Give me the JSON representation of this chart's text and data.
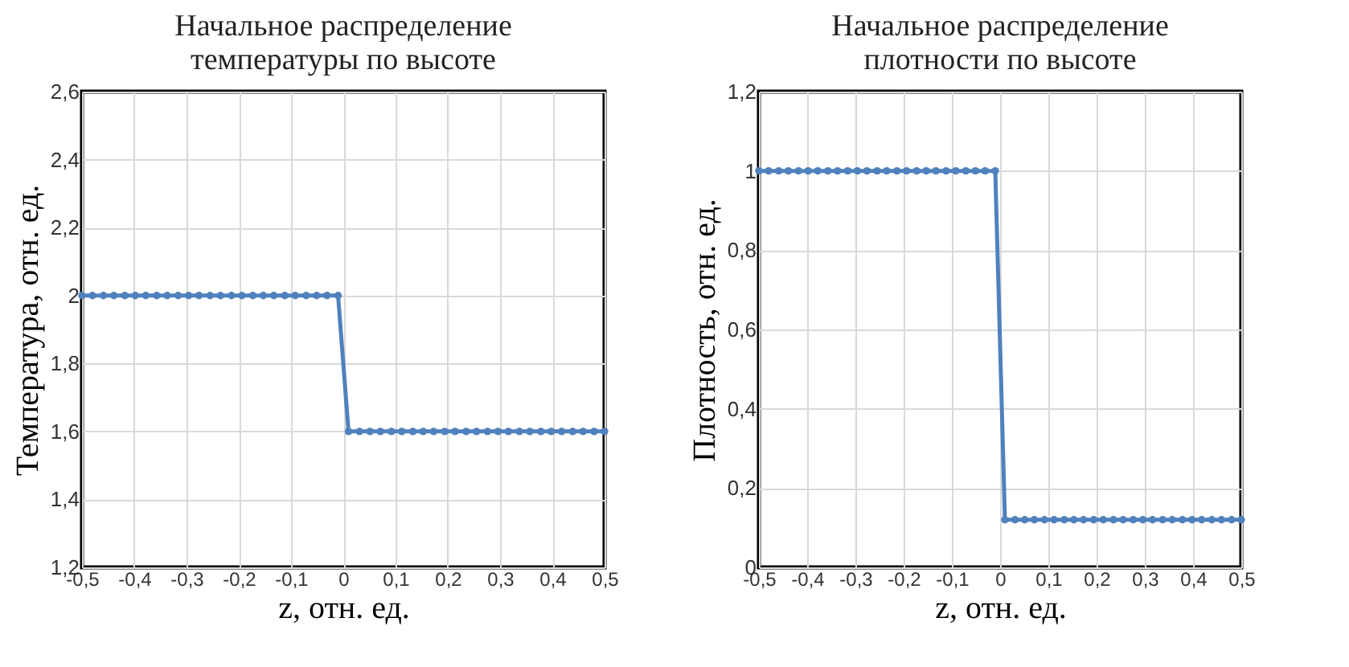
{
  "chart_data": [
    {
      "type": "line",
      "title": "Начальное распределение\nтемпературы по высоте",
      "xlabel": "z, отн. ед.",
      "ylabel": "Температура, отн. ед.",
      "x": [
        -0.5,
        -0.48,
        -0.459,
        -0.439,
        -0.418,
        -0.398,
        -0.378,
        -0.357,
        -0.337,
        -0.316,
        -0.296,
        -0.276,
        -0.255,
        -0.235,
        -0.214,
        -0.194,
        -0.173,
        -0.153,
        -0.133,
        -0.112,
        -0.092,
        -0.071,
        -0.051,
        -0.031,
        -0.01,
        0.01,
        0.031,
        0.051,
        0.071,
        0.092,
        0.112,
        0.133,
        0.153,
        0.173,
        0.194,
        0.214,
        0.235,
        0.255,
        0.276,
        0.296,
        0.316,
        0.337,
        0.357,
        0.378,
        0.398,
        0.418,
        0.439,
        0.459,
        0.48,
        0.5
      ],
      "series": [
        {
          "color": "#4f81bd",
          "values": [
            2,
            2,
            2,
            2,
            2,
            2,
            2,
            2,
            2,
            2,
            2,
            2,
            2,
            2,
            2,
            2,
            2,
            2,
            2,
            2,
            2,
            2,
            2,
            2,
            2,
            1.6,
            1.6,
            1.6,
            1.6,
            1.6,
            1.6,
            1.6,
            1.6,
            1.6,
            1.6,
            1.6,
            1.6,
            1.6,
            1.6,
            1.6,
            1.6,
            1.6,
            1.6,
            1.6,
            1.6,
            1.6,
            1.6,
            1.6,
            1.6,
            1.6
          ]
        }
      ],
      "xlim": [
        -0.5,
        0.5
      ],
      "xticks": [
        {
          "value": -0.5,
          "label": "-0,5"
        },
        {
          "value": -0.4,
          "label": "-0,4"
        },
        {
          "value": -0.3,
          "label": "-0,3"
        },
        {
          "value": -0.2,
          "label": "-0,2"
        },
        {
          "value": -0.1,
          "label": "-0,1"
        },
        0,
        {
          "value": 0.1,
          "label": "0,1"
        },
        {
          "value": 0.2,
          "label": "0,2"
        },
        {
          "value": 0.3,
          "label": "0,3"
        },
        {
          "value": 0.4,
          "label": "0,4"
        },
        {
          "value": 0.5,
          "label": "0,5"
        }
      ],
      "ylim": [
        1.2,
        2.6
      ],
      "yticks": [
        {
          "value": 1.2,
          "label": "1,2"
        },
        {
          "value": 1.4,
          "label": "1,4"
        },
        {
          "value": 1.6,
          "label": "1,6"
        },
        {
          "value": 1.8,
          "label": "1,8"
        },
        2,
        {
          "value": 2.2,
          "label": "2,2"
        },
        {
          "value": 2.4,
          "label": "2,4"
        },
        {
          "value": 2.6,
          "label": "2,6"
        }
      ],
      "grid": true,
      "marker": "circle",
      "line_style": "solid"
    },
    {
      "type": "line",
      "title": "Начальное распределение\nплотности по высоте",
      "xlabel": "z, отн. ед.",
      "ylabel": "Плотность, отн. ед.",
      "x": [
        -0.5,
        -0.48,
        -0.459,
        -0.439,
        -0.418,
        -0.398,
        -0.378,
        -0.357,
        -0.337,
        -0.316,
        -0.296,
        -0.276,
        -0.255,
        -0.235,
        -0.214,
        -0.194,
        -0.173,
        -0.153,
        -0.133,
        -0.112,
        -0.092,
        -0.071,
        -0.051,
        -0.031,
        -0.01,
        0.01,
        0.031,
        0.051,
        0.071,
        0.092,
        0.112,
        0.133,
        0.153,
        0.173,
        0.194,
        0.214,
        0.235,
        0.255,
        0.276,
        0.296,
        0.316,
        0.337,
        0.357,
        0.378,
        0.398,
        0.418,
        0.439,
        0.459,
        0.48,
        0.5
      ],
      "series": [
        {
          "color": "#4f81bd",
          "values": [
            1,
            1,
            1,
            1,
            1,
            1,
            1,
            1,
            1,
            1,
            1,
            1,
            1,
            1,
            1,
            1,
            1,
            1,
            1,
            1,
            1,
            1,
            1,
            1,
            1,
            0.12,
            0.12,
            0.12,
            0.12,
            0.12,
            0.12,
            0.12,
            0.12,
            0.12,
            0.12,
            0.12,
            0.12,
            0.12,
            0.12,
            0.12,
            0.12,
            0.12,
            0.12,
            0.12,
            0.12,
            0.12,
            0.12,
            0.12,
            0.12,
            0.12
          ]
        }
      ],
      "xlim": [
        -0.5,
        0.5
      ],
      "xticks": [
        {
          "value": -0.5,
          "label": "-0,5"
        },
        {
          "value": -0.4,
          "label": "-0,4"
        },
        {
          "value": -0.3,
          "label": "-0,3"
        },
        {
          "value": -0.2,
          "label": "-0,2"
        },
        {
          "value": -0.1,
          "label": "-0,1"
        },
        0,
        {
          "value": 0.1,
          "label": "0,1"
        },
        {
          "value": 0.2,
          "label": "0,2"
        },
        {
          "value": 0.3,
          "label": "0,3"
        },
        {
          "value": 0.4,
          "label": "0,4"
        },
        {
          "value": 0.5,
          "label": "0,5"
        }
      ],
      "ylim": [
        0,
        1.2
      ],
      "yticks": [
        0,
        {
          "value": 0.2,
          "label": "0,2"
        },
        {
          "value": 0.4,
          "label": "0,4"
        },
        {
          "value": 0.6,
          "label": "0,6"
        },
        {
          "value": 0.8,
          "label": "0,8"
        },
        1,
        {
          "value": 1.2,
          "label": "1,2"
        }
      ],
      "grid": true,
      "marker": "circle",
      "line_style": "solid"
    }
  ]
}
